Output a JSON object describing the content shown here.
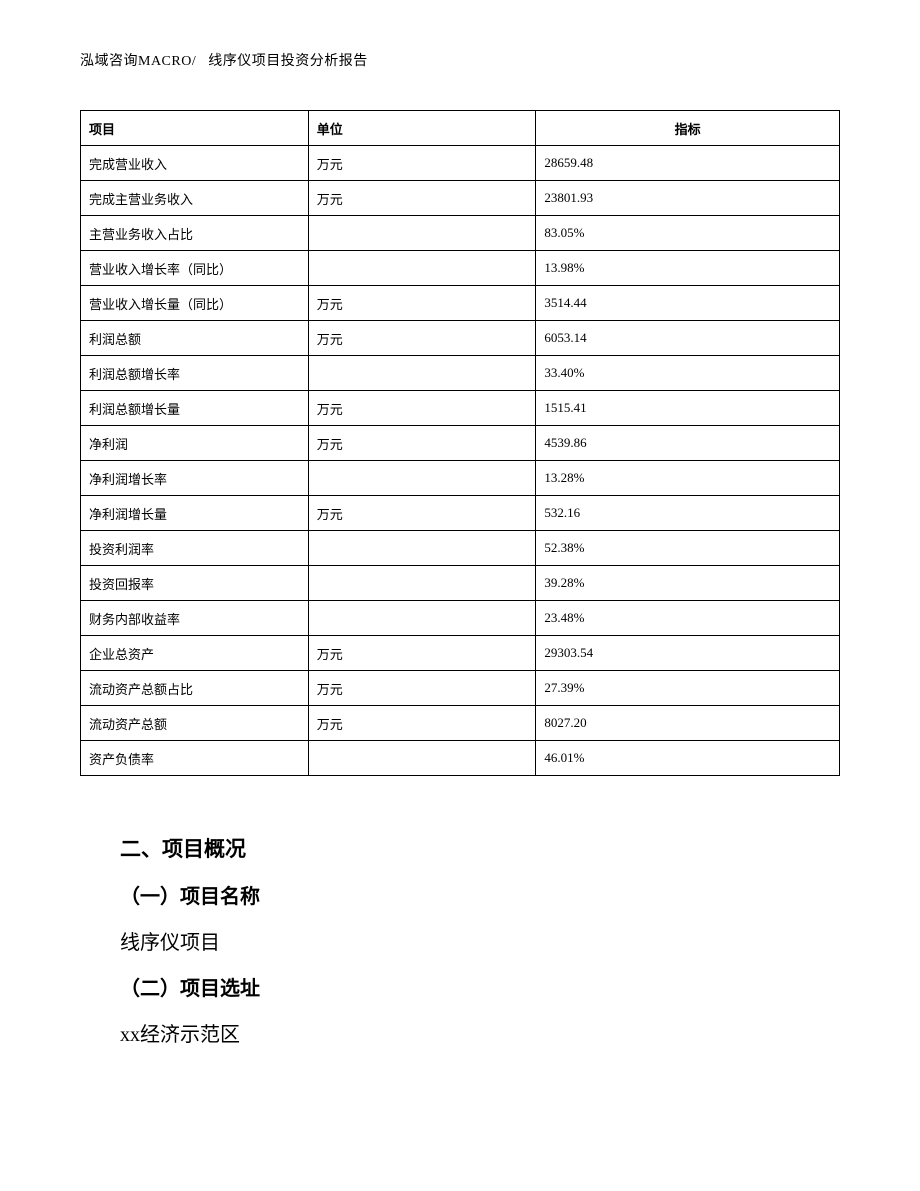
{
  "header": {
    "company": "泓域咨询MACRO/",
    "report_title": "线序仪项目投资分析报告"
  },
  "table": {
    "columns": [
      "项目",
      "单位",
      "指标"
    ],
    "rows": [
      [
        "完成营业收入",
        "万元",
        "28659.48"
      ],
      [
        "完成主营业务收入",
        "万元",
        "23801.93"
      ],
      [
        "主营业务收入占比",
        "",
        "83.05%"
      ],
      [
        "营业收入增长率（同比）",
        "",
        "13.98%"
      ],
      [
        "营业收入增长量（同比）",
        "万元",
        "3514.44"
      ],
      [
        "利润总额",
        "万元",
        "6053.14"
      ],
      [
        "利润总额增长率",
        "",
        "33.40%"
      ],
      [
        "利润总额增长量",
        "万元",
        "1515.41"
      ],
      [
        "净利润",
        "万元",
        "4539.86"
      ],
      [
        "净利润增长率",
        "",
        "13.28%"
      ],
      [
        "净利润增长量",
        "万元",
        "532.16"
      ],
      [
        "投资利润率",
        "",
        "52.38%"
      ],
      [
        "投资回报率",
        "",
        "39.28%"
      ],
      [
        "财务内部收益率",
        "",
        "23.48%"
      ],
      [
        "企业总资产",
        "万元",
        "29303.54"
      ],
      [
        "流动资产总额占比",
        "万元",
        "27.39%"
      ],
      [
        "流动资产总额",
        "万元",
        "8027.20"
      ],
      [
        "资产负债率",
        "",
        "46.01%"
      ]
    ]
  },
  "body": {
    "section_heading": "二、项目概况",
    "sub1_heading": "（一）项目名称",
    "sub1_text": "线序仪项目",
    "sub2_heading": "（二）项目选址",
    "sub2_text": "xx经济示范区"
  }
}
